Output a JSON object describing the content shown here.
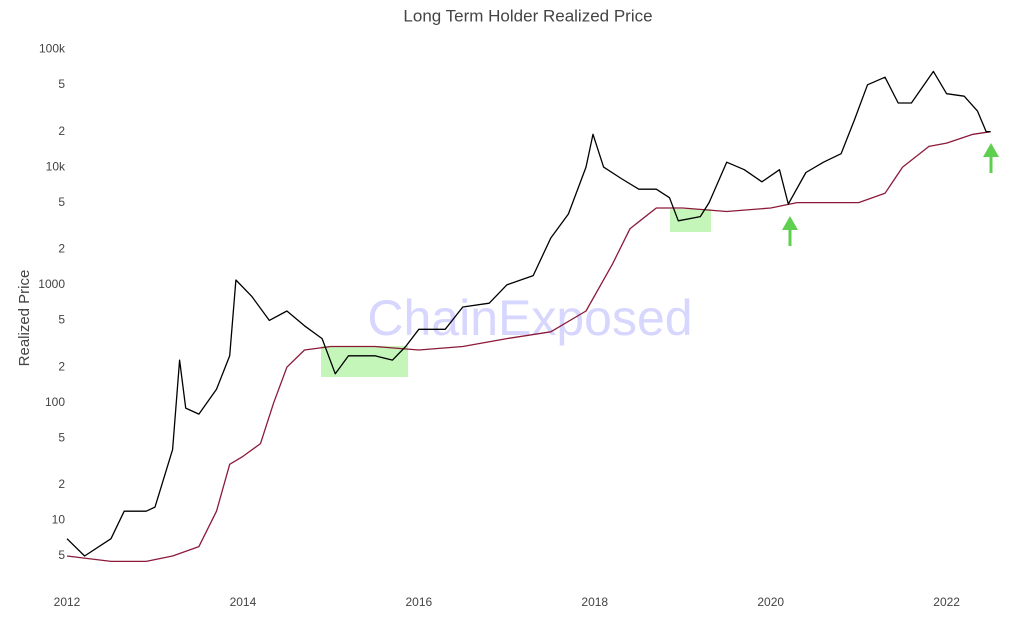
{
  "chart_data": {
    "type": "line",
    "title": "Long Term Holder Realized Price",
    "ylabel": "Realized Price",
    "watermark": "ChainExposed",
    "log_y": true,
    "grid": false,
    "xlim": [
      2012,
      2022.55
    ],
    "xticks": [
      2012,
      2014,
      2016,
      2018,
      2020,
      2022
    ],
    "ylim": [
      3.8,
      120000
    ],
    "yticks": [
      5,
      10,
      {
        "value": 20,
        "label": "2"
      },
      {
        "value": 50,
        "label": "5"
      },
      100,
      {
        "value": 200,
        "label": "2"
      },
      {
        "value": 500,
        "label": "5"
      },
      1000,
      {
        "value": 2000,
        "label": "2"
      },
      {
        "value": 5000,
        "label": "5"
      },
      {
        "value": 10000,
        "label": "10k"
      },
      {
        "value": 20000,
        "label": "2"
      },
      {
        "value": 50000,
        "label": "5"
      },
      {
        "value": 100000,
        "label": "100k"
      }
    ],
    "series": [
      {
        "color": "#000000",
        "x": [
          2012.0,
          2012.2,
          2012.5,
          2012.65,
          2012.9,
          2013.0,
          2013.2,
          2013.28,
          2013.35,
          2013.5,
          2013.7,
          2013.85,
          2013.92,
          2014.1,
          2014.3,
          2014.5,
          2014.7,
          2014.9,
          2015.05,
          2015.2,
          2015.5,
          2015.7,
          2015.85,
          2016.0,
          2016.3,
          2016.5,
          2016.8,
          2017.0,
          2017.3,
          2017.5,
          2017.7,
          2017.9,
          2017.98,
          2018.1,
          2018.3,
          2018.5,
          2018.7,
          2018.85,
          2018.95,
          2019.2,
          2019.3,
          2019.5,
          2019.7,
          2019.9,
          2020.1,
          2020.2,
          2020.4,
          2020.6,
          2020.8,
          2020.95,
          2021.1,
          2021.3,
          2021.45,
          2021.6,
          2021.85,
          2022.0,
          2022.2,
          2022.35,
          2022.45,
          2022.5
        ],
        "values": [
          7,
          5,
          7,
          12,
          12,
          13,
          40,
          230,
          90,
          80,
          130,
          250,
          1100,
          800,
          500,
          600,
          450,
          350,
          176,
          250,
          250,
          230,
          300,
          420,
          420,
          650,
          700,
          1000,
          1200,
          2500,
          4000,
          10000,
          19000,
          10000,
          8000,
          6500,
          6500,
          5500,
          3500,
          3800,
          5000,
          11000,
          9500,
          7500,
          9500,
          4850,
          9000,
          11000,
          13000,
          25000,
          50000,
          58000,
          35000,
          35000,
          65000,
          42000,
          40000,
          30000,
          20000,
          20000
        ]
      },
      {
        "color": "#8b1a3a",
        "x": [
          2012.0,
          2012.5,
          2012.9,
          2013.2,
          2013.5,
          2013.7,
          2013.85,
          2014.0,
          2014.2,
          2014.35,
          2014.5,
          2014.7,
          2015.0,
          2015.5,
          2016.0,
          2016.5,
          2017.0,
          2017.5,
          2017.9,
          2018.2,
          2018.4,
          2018.7,
          2019.0,
          2019.5,
          2020.0,
          2020.3,
          2021.0,
          2021.3,
          2021.5,
          2021.8,
          2022.0,
          2022.3,
          2022.5
        ],
        "values": [
          5,
          4.5,
          4.5,
          5,
          6,
          12,
          30,
          35,
          45,
          100,
          200,
          280,
          300,
          300,
          280,
          300,
          350,
          400,
          600,
          1500,
          3000,
          4500,
          4500,
          4200,
          4500,
          5000,
          5000,
          6000,
          10000,
          15000,
          16000,
          19000,
          20000
        ]
      }
    ]
  }
}
